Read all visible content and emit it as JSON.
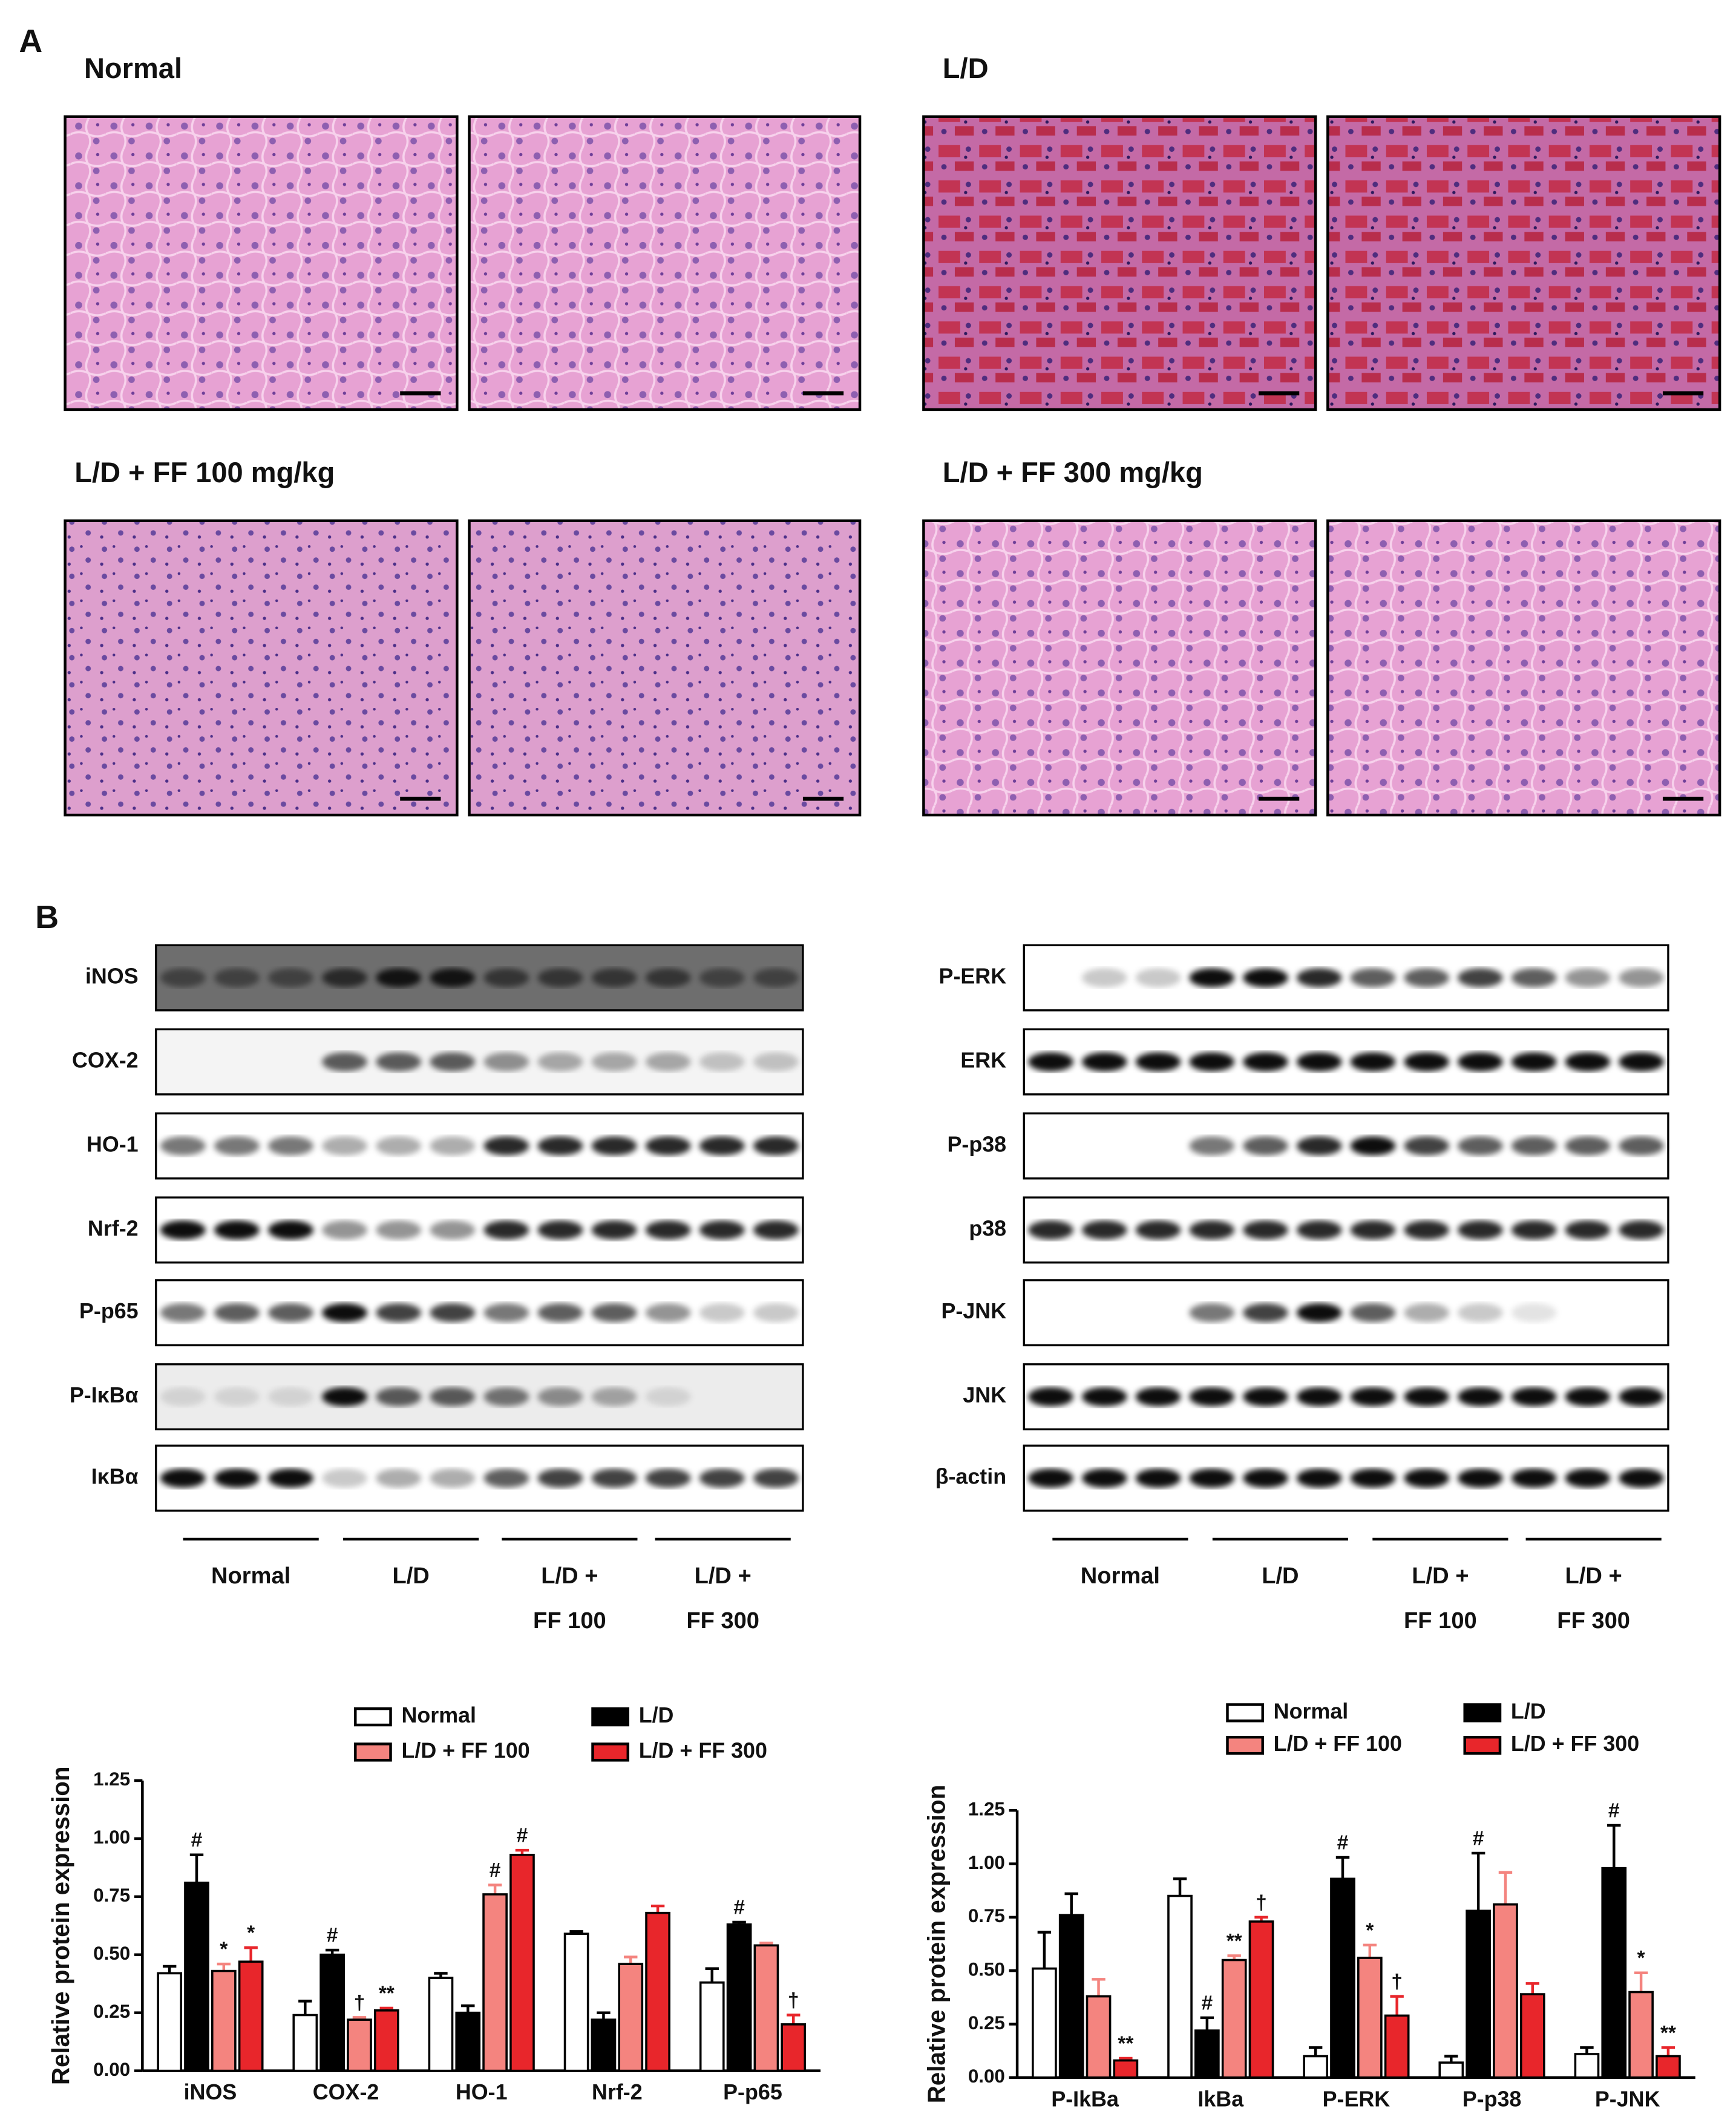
{
  "figure": {
    "panel_a": {
      "label": "A",
      "groups": [
        "Normal",
        "L/D",
        "L/D + FF 100 mg/kg",
        "L/D + FF 300 mg/kg"
      ]
    },
    "panel_b": {
      "label": "B",
      "blots": [
        {
          "rows": [
            "iNOS",
            "COX-2",
            "HO-1",
            "Nrf-2",
            "P-p65",
            "P-IκBα",
            "IκBα"
          ],
          "groups": [
            [
              "Normal"
            ],
            [
              "L/D"
            ],
            [
              "L/D +",
              "FF 100"
            ],
            [
              "L/D +",
              "FF 300"
            ]
          ]
        },
        {
          "rows": [
            "P-ERK",
            "ERK",
            "P-p38",
            "p38",
            "P-JNK",
            "JNK",
            "β-actin"
          ],
          "groups": [
            [
              "Normal"
            ],
            [
              "L/D"
            ],
            [
              "L/D +",
              "FF 100"
            ],
            [
              "L/D +",
              "FF 300"
            ]
          ]
        }
      ]
    }
  },
  "chart_data": [
    {
      "type": "bar",
      "y_label": "Relative protein expression",
      "categories": [
        "iNOS",
        "COX-2",
        "HO-1",
        "Nrf-2",
        "P-p65"
      ],
      "series": [
        {
          "name": "Normal",
          "color": "#ffffff",
          "values": [
            0.42,
            0.24,
            0.4,
            0.59,
            0.38
          ],
          "errors": [
            0.03,
            0.06,
            0.02,
            0.01,
            0.06
          ],
          "marks": [
            null,
            null,
            null,
            null,
            null
          ]
        },
        {
          "name": "L/D",
          "color": "#000000",
          "values": [
            0.81,
            0.5,
            0.25,
            0.22,
            0.63
          ],
          "errors": [
            0.12,
            0.02,
            0.03,
            0.03,
            0.01
          ],
          "marks": [
            "#",
            "#",
            null,
            null,
            "#"
          ]
        },
        {
          "name": "L/D + FF 100",
          "color": "#f4847f",
          "values": [
            0.43,
            0.22,
            0.76,
            0.46,
            0.54
          ],
          "errors": [
            0.03,
            0.01,
            0.04,
            0.03,
            0.01
          ],
          "marks": [
            "*",
            "†",
            "#",
            null,
            null
          ]
        },
        {
          "name": "L/D + FF 300",
          "color": "#e8262b",
          "values": [
            0.47,
            0.26,
            0.93,
            0.68,
            0.2
          ],
          "errors": [
            0.06,
            0.01,
            0.02,
            0.03,
            0.04
          ],
          "marks": [
            "*",
            "**",
            "#",
            null,
            "†"
          ]
        }
      ],
      "ylim": [
        0,
        1.25
      ],
      "yticks": [
        {
          "value": 0,
          "label": "0.00"
        },
        0.25,
        {
          "value": 0.5,
          "label": "0.50"
        },
        0.75,
        {
          "value": 1,
          "label": "1.00"
        },
        1.25
      ],
      "grid": false,
      "legend": "top"
    },
    {
      "type": "bar",
      "y_label": "Relative protein expression",
      "categories": [
        "P-IkBa",
        "IkBa",
        "P-ERK",
        "P-p38",
        "P-JNK"
      ],
      "series": [
        {
          "name": "Normal",
          "color": "#ffffff",
          "values": [
            0.51,
            0.85,
            0.1,
            0.07,
            0.11
          ],
          "errors": [
            0.17,
            0.08,
            0.04,
            0.03,
            0.03
          ],
          "marks": [
            null,
            null,
            null,
            null,
            null
          ]
        },
        {
          "name": "L/D",
          "color": "#000000",
          "values": [
            0.76,
            0.22,
            0.93,
            0.78,
            0.98
          ],
          "errors": [
            0.1,
            0.06,
            0.1,
            0.27,
            0.2
          ],
          "marks": [
            null,
            "#",
            "#",
            "#",
            "#"
          ]
        },
        {
          "name": "L/D + FF 100",
          "color": "#f4847f",
          "values": [
            0.38,
            0.55,
            0.56,
            0.81,
            0.4
          ],
          "errors": [
            0.08,
            0.02,
            0.06,
            0.15,
            0.09
          ],
          "marks": [
            null,
            "**",
            "*",
            null,
            "*"
          ]
        },
        {
          "name": "L/D + FF 300",
          "color": "#e8262b",
          "values": [
            0.08,
            0.73,
            0.29,
            0.39,
            0.1
          ],
          "errors": [
            0.01,
            0.02,
            0.09,
            0.05,
            0.04
          ],
          "marks": [
            "**",
            "†",
            "†",
            null,
            "**"
          ]
        }
      ],
      "ylim": [
        0,
        1.25
      ],
      "yticks": [
        {
          "value": 0,
          "label": "0.00"
        },
        0.25,
        {
          "value": 0.5,
          "label": "0.50"
        },
        0.75,
        {
          "value": 1,
          "label": "1.00"
        },
        1.25
      ],
      "grid": false,
      "legend": "top"
    }
  ]
}
